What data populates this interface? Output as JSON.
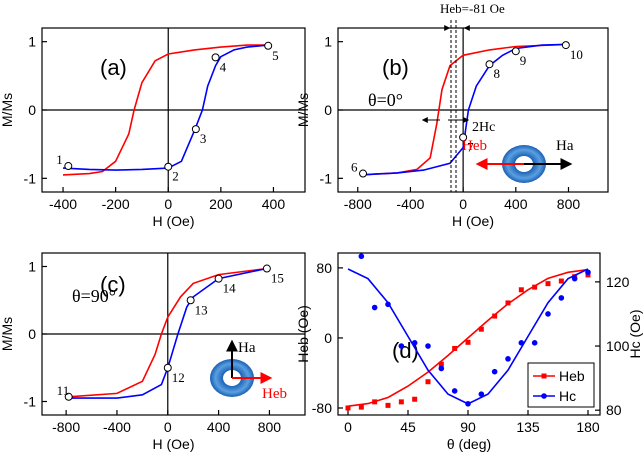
{
  "chart_data": [
    {
      "type": "line",
      "title": "(a)",
      "xlabel": "H (Oe)",
      "ylabel": "M/Ms",
      "xlim": [
        -480,
        520
      ],
      "ylim": [
        -1.2,
        1.2
      ],
      "xticks": [
        -400,
        -200,
        0,
        200,
        400
      ],
      "yticks": [
        -1,
        0,
        1
      ],
      "series": [
        {
          "color": "#ff0000",
          "x": [
            380,
            300,
            200,
            100,
            0,
            -50,
            -100,
            -130,
            -150,
            -200,
            -250,
            -300,
            -400
          ],
          "values": [
            0.95,
            0.95,
            0.92,
            0.88,
            0.82,
            0.72,
            0.4,
            0,
            -0.35,
            -0.75,
            -0.9,
            -0.93,
            -0.95
          ]
        },
        {
          "color": "#0000ff",
          "x": [
            -400,
            -300,
            -200,
            -100,
            0,
            50,
            100,
            130,
            150,
            180,
            200,
            250,
            300,
            380
          ],
          "values": [
            -0.85,
            -0.87,
            -0.88,
            -0.87,
            -0.85,
            -0.75,
            -0.3,
            0,
            0.35,
            0.65,
            0.78,
            0.88,
            0.92,
            0.95
          ]
        }
      ],
      "points": {
        "labels": [
          "1",
          "2",
          "3",
          "4",
          "5"
        ],
        "x": [
          -380,
          0,
          105,
          180,
          380
        ],
        "values": [
          -0.82,
          -0.83,
          -0.28,
          0.77,
          0.94
        ]
      },
      "annotations": []
    },
    {
      "type": "line",
      "title": "(b)",
      "xlabel": "H (Oe)",
      "ylabel": "M/Ms",
      "xlim": [
        -950,
        1100
      ],
      "ylim": [
        -1.2,
        1.2
      ],
      "xticks": [
        -800,
        -400,
        0,
        400,
        800
      ],
      "yticks": [
        -1,
        0,
        1
      ],
      "series": [
        {
          "color": "#ff0000",
          "x": [
            780,
            400,
            200,
            0,
            -100,
            -160,
            -200,
            -250,
            -350,
            -500,
            -780
          ],
          "values": [
            0.96,
            0.93,
            0.88,
            0.8,
            0.65,
            0.3,
            -0.2,
            -0.7,
            -0.87,
            -0.92,
            -0.95
          ]
        },
        {
          "color": "#0000ff",
          "x": [
            -780,
            -500,
            -300,
            -100,
            0,
            40,
            100,
            200,
            300,
            400,
            600,
            780
          ],
          "values": [
            -0.95,
            -0.92,
            -0.88,
            -0.78,
            -0.55,
            0,
            0.35,
            0.65,
            0.8,
            0.9,
            0.95,
            0.96
          ]
        }
      ],
      "points": {
        "labels": [
          "6",
          "7",
          "8",
          "9",
          "10"
        ],
        "x": [
          -760,
          0,
          200,
          400,
          780
        ],
        "values": [
          -0.93,
          -0.4,
          0.67,
          0.86,
          0.95
        ]
      },
      "annotations": [
        "Heb=-81 Oe",
        "θ=0°",
        "2Hc",
        "Heb",
        "Ha"
      ]
    },
    {
      "type": "line",
      "title": "(c)",
      "xlabel": "H (Oe)",
      "ylabel": "M/Ms",
      "xlim": [
        -990,
        1080
      ],
      "ylim": [
        -1.2,
        1.2
      ],
      "xticks": [
        -800,
        -400,
        0,
        400,
        800
      ],
      "yticks": [
        -1,
        0,
        1
      ],
      "series": [
        {
          "color": "#ff0000",
          "x": [
            780,
            400,
            200,
            100,
            0,
            -50,
            -100,
            -200,
            -400,
            -780
          ],
          "values": [
            0.97,
            0.88,
            0.75,
            0.55,
            0.25,
            0,
            -0.3,
            -0.7,
            -0.88,
            -0.93
          ]
        },
        {
          "color": "#0000ff",
          "x": [
            -780,
            -400,
            -200,
            -50,
            0,
            80,
            150,
            200,
            400,
            780
          ],
          "values": [
            -0.95,
            -0.95,
            -0.9,
            -0.75,
            -0.5,
            0,
            0.4,
            0.55,
            0.82,
            0.97
          ]
        }
      ],
      "points": {
        "labels": [
          "11",
          "12",
          "13",
          "14",
          "15"
        ],
        "x": [
          -780,
          0,
          180,
          400,
          780
        ],
        "values": [
          -0.93,
          -0.5,
          0.5,
          0.82,
          0.97
        ]
      },
      "annotations": [
        "θ=90°",
        "Ha",
        "Heb"
      ]
    },
    {
      "type": "scatter",
      "title": "(d)",
      "xlabel": "θ (deg)",
      "ylabel": "Heb (Oe)",
      "y2label": "Hc (Oe)",
      "xlim": [
        -7.5,
        189
      ],
      "ylim": [
        -88,
        97
      ],
      "y2lim": [
        78.5,
        129
      ],
      "xticks": [
        0,
        45,
        90,
        135,
        180
      ],
      "yticks": [
        -80,
        0,
        80
      ],
      "y2ticks": [
        80,
        100,
        120
      ],
      "legend": "lower right",
      "series": [
        {
          "name": "Heb",
          "color": "#ff0000",
          "marker": "square",
          "x": [
            0,
            10,
            20,
            30,
            40,
            50,
            60,
            70,
            80,
            90,
            100,
            110,
            120,
            130,
            140,
            150,
            160,
            170,
            180
          ],
          "values": [
            -80,
            -79,
            -73,
            -77,
            -73,
            -70,
            -50,
            -30,
            -12,
            -5,
            10,
            25,
            40,
            55,
            58,
            62,
            65,
            70,
            72
          ],
          "fit_x": [
            0,
            15,
            30,
            45,
            60,
            75,
            90,
            105,
            120,
            135,
            150,
            165,
            180
          ],
          "fit_values": [
            -78,
            -75,
            -68,
            -55,
            -39,
            -20,
            0,
            20,
            39,
            55,
            68,
            75,
            78
          ]
        },
        {
          "name": "Hc",
          "color": "#0000ff",
          "marker": "circle",
          "axis": "y2",
          "x": [
            10,
            20,
            30,
            40,
            50,
            60,
            70,
            80,
            90,
            100,
            110,
            120,
            130,
            140,
            150,
            160,
            170,
            180
          ],
          "values": [
            128,
            112,
            113,
            100,
            101,
            100,
            93,
            86,
            82,
            85,
            92,
            96,
            101,
            101,
            110,
            115,
            121,
            123
          ],
          "fit_x": [
            0,
            15,
            30,
            45,
            60,
            75,
            90,
            105,
            120,
            135,
            150,
            165,
            180
          ],
          "fit_values": [
            124,
            121,
            113.5,
            103,
            92.5,
            85,
            82,
            85,
            92.5,
            103,
            113.5,
            121,
            124
          ]
        }
      ]
    }
  ]
}
